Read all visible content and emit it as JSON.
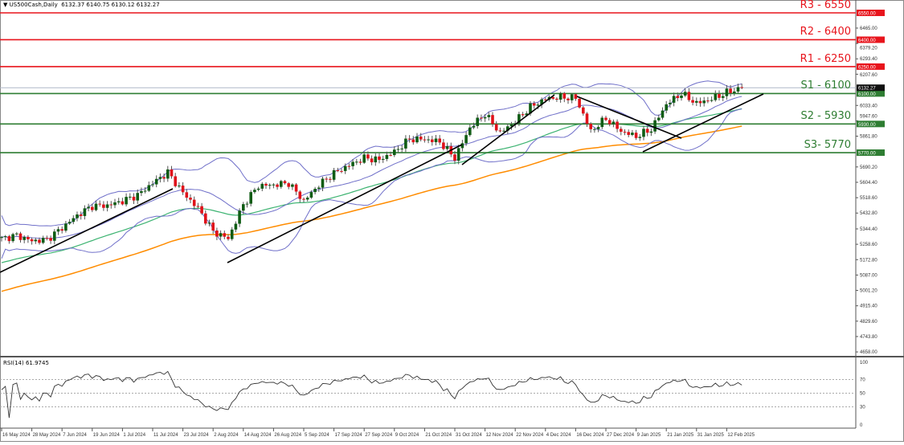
{
  "header": {
    "symbol": "US500Cash,Daily",
    "ohlc": "6132.37 6140.75 6130.12 6132.27"
  },
  "rsi_header": "RSI(14) 61.9745",
  "levels": [
    {
      "label": "R3 - 6550",
      "price": 6550,
      "box": "6550.00",
      "color": "#e8141c"
    },
    {
      "label": "R2 - 6400",
      "price": 6400,
      "box": "6400.00",
      "color": "#e8141c"
    },
    {
      "label": "R1 - 6250",
      "price": 6250,
      "box": "6250.00",
      "color": "#e8141c"
    },
    {
      "label": "S1 - 6100",
      "price": 6100,
      "box": "6100.00",
      "color": "#2e7d32"
    },
    {
      "label": "S2 - 5930",
      "price": 5930,
      "box": "5930.00",
      "color": "#2e7d32"
    },
    {
      "label": "S3- 5770",
      "price": 5770,
      "box": "5770.00",
      "color": "#2e7d32"
    }
  ],
  "current_price": {
    "value": 6132.27,
    "label": "6132.27"
  },
  "chart_data": {
    "type": "candlestick",
    "instrument": "US500Cash",
    "timeframe": "Daily",
    "ylim": [
      4658.0,
      6550.0
    ],
    "y_ticks": [
      "6465.00",
      "6379.20",
      "6293.40",
      "6207.60",
      "6033.40",
      "5947.60",
      "5861.80",
      "5690.20",
      "5604.40",
      "5518.60",
      "5432.80",
      "5344.40",
      "5258.60",
      "5172.80",
      "5087.00",
      "5001.20",
      "4915.40",
      "4829.60",
      "4743.80",
      "4658.00"
    ],
    "y_tick_values": [
      6465.0,
      6379.2,
      6293.4,
      6207.6,
      6033.4,
      5947.6,
      5861.8,
      5690.2,
      5604.4,
      5518.6,
      5432.8,
      5344.4,
      5258.6,
      5172.8,
      5087.0,
      5001.2,
      4915.4,
      4829.6,
      4743.8,
      4658.0
    ],
    "x_ticks": [
      "16 May 2024",
      "28 May 2024",
      "7 Jun 2024",
      "19 Jun 2024",
      "1 Jul 2024",
      "11 Jul 2024",
      "23 Jul 2024",
      "2 Aug 2024",
      "14 Aug 2024",
      "26 Aug 2024",
      "5 Sep 2024",
      "17 Sep 2024",
      "27 Sep 2024",
      "9 Oct 2024",
      "21 Oct 2024",
      "31 Oct 2024",
      "12 Nov 2024",
      "22 Nov 2024",
      "4 Dec 2024",
      "16 Dec 2024",
      "27 Dec 2024",
      "9 Jan 2025",
      "21 Jan 2025",
      "31 Jan 2025",
      "12 Feb 2025"
    ],
    "approx_closes_every_4_bars": [
      5290,
      5308,
      5277,
      5285,
      5350,
      5420,
      5472,
      5475,
      5500,
      5533,
      5600,
      5660,
      5546,
      5460,
      5330,
      5290,
      5480,
      5585,
      5590,
      5600,
      5500,
      5590,
      5655,
      5700,
      5740,
      5730,
      5775,
      5845,
      5845,
      5830,
      5740,
      5910,
      5985,
      5880,
      5945,
      6025,
      6070,
      6080,
      6075,
      5890,
      5960,
      5890,
      5860,
      5900,
      6040,
      6100,
      6045,
      6070,
      6105,
      6132.27
    ],
    "overlays": [
      {
        "type": "bollinger",
        "period": 20,
        "color": "#6f6fc9"
      },
      {
        "type": "moving_average",
        "color": "#3cb371"
      },
      {
        "type": "moving_average",
        "color": "#ff8c00"
      }
    ],
    "rsi": {
      "period": 14,
      "last": 61.9745,
      "ylim": [
        0,
        100
      ],
      "levels": [
        70,
        50,
        30
      ],
      "tick_labels": [
        "100",
        "70",
        "50",
        "30",
        "0"
      ]
    },
    "colors": {
      "up": "#0f5c14",
      "down": "#e0121a",
      "trendline": "#000000"
    }
  }
}
